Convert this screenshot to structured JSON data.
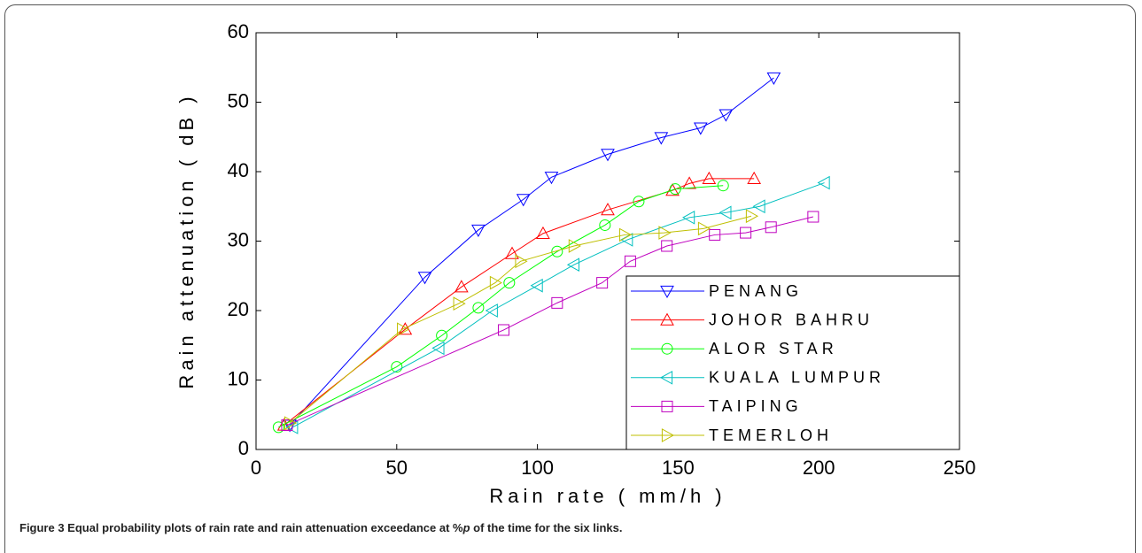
{
  "chart_data": {
    "type": "line",
    "xlabel": "Rain rate ( mm/h )",
    "ylabel": "Rain attenuation ( dB )",
    "xlim": [
      0,
      250
    ],
    "xticks": [
      0,
      50,
      100,
      150,
      200,
      250
    ],
    "ylim": [
      0,
      60
    ],
    "yticks": [
      0,
      10,
      20,
      30,
      40,
      50,
      60
    ],
    "grid": false,
    "legend": "lower right",
    "series": [
      {
        "name": "PENANG",
        "color": "#0000ff",
        "marker": "triangle-down",
        "x": [
          12,
          60,
          79,
          95,
          105,
          125,
          144,
          158,
          167,
          184
        ],
        "values": [
          3.5,
          24.8,
          31.6,
          36,
          39.2,
          42.5,
          44.9,
          46.3,
          48.2,
          53.5
        ]
      },
      {
        "name": "JOHOR BAHRU",
        "color": "#ff0000",
        "marker": "triangle-up",
        "x": [
          10,
          53,
          73,
          91,
          102,
          125,
          148,
          154,
          161,
          177
        ],
        "values": [
          3.5,
          17.3,
          23.4,
          28.2,
          31.1,
          34.5,
          37.3,
          38.3,
          39,
          39
        ]
      },
      {
        "name": "ALOR STAR",
        "color": "#00ff00",
        "marker": "circle",
        "x": [
          8,
          50,
          66,
          79,
          90,
          107,
          124,
          136,
          149,
          166
        ],
        "values": [
          3.2,
          11.9,
          16.4,
          20.4,
          24,
          28.5,
          32.3,
          35.7,
          37.5,
          38
        ]
      },
      {
        "name": "KUALA LUMPUR",
        "color": "#00bfbf",
        "marker": "triangle-left",
        "x": [
          13,
          65,
          84,
          100,
          113,
          132,
          154,
          167,
          179,
          202
        ],
        "values": [
          3.2,
          14.6,
          20,
          23.6,
          26.6,
          30.2,
          33.4,
          34.1,
          35,
          38.4
        ]
      },
      {
        "name": "TAIPING",
        "color": "#bf00bf",
        "marker": "square",
        "x": [
          11,
          88,
          107,
          123,
          133,
          146,
          163,
          174,
          183,
          198
        ],
        "values": [
          3.5,
          17.2,
          21.1,
          24,
          27.1,
          29.3,
          30.9,
          31.2,
          32,
          33.5
        ]
      },
      {
        "name": "TEMERLOH",
        "color": "#bfbf00",
        "marker": "triangle-right",
        "x": [
          12,
          52,
          72,
          85,
          94,
          113,
          131,
          145,
          159,
          176
        ],
        "values": [
          3.8,
          17.3,
          21,
          24,
          27.1,
          29.3,
          30.9,
          31.2,
          31.8,
          33.6
        ]
      }
    ]
  },
  "caption": [
    "Figure 3 Equal probability plots of rain rate and rain attenuation exceedance at %",
    "p",
    " of the time for the six links."
  ]
}
